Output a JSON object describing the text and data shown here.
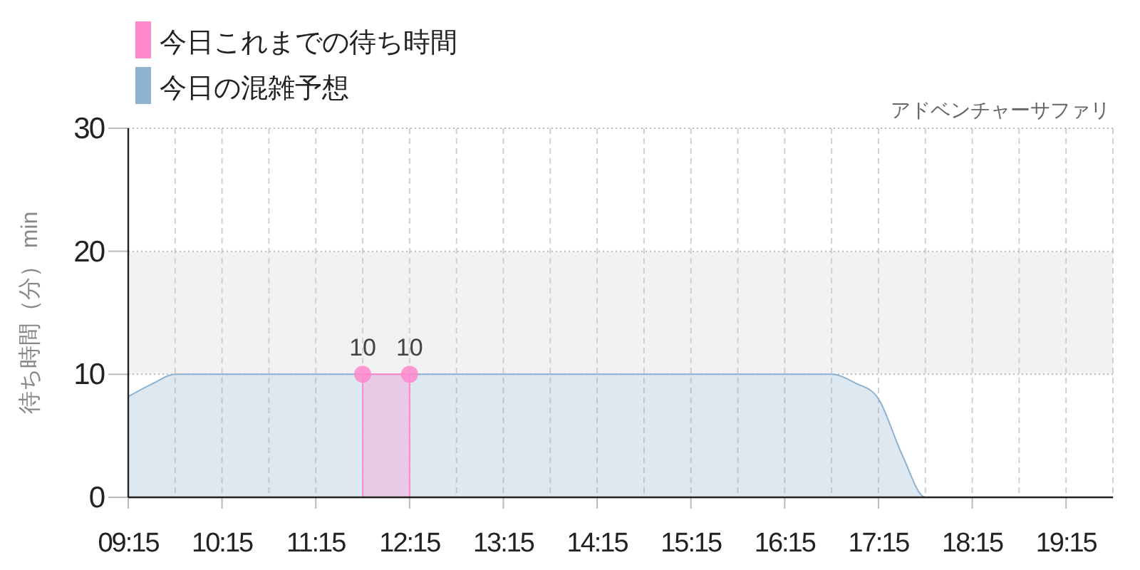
{
  "chart_data": {
    "type": "area",
    "title": "アドベンチャーサファリ",
    "ylabel": "待ち時間（分） min",
    "xlim": [
      9.25,
      19.75
    ],
    "xticks": [
      {
        "value": 9.25,
        "label": "09:15"
      },
      {
        "value": 9.75,
        "label": null
      },
      {
        "value": 10.25,
        "label": "10:15"
      },
      {
        "value": 10.75,
        "label": null
      },
      {
        "value": 11.25,
        "label": "11:15"
      },
      {
        "value": 11.75,
        "label": null
      },
      {
        "value": 12.25,
        "label": "12:15"
      },
      {
        "value": 12.75,
        "label": null
      },
      {
        "value": 13.25,
        "label": "13:15"
      },
      {
        "value": 13.75,
        "label": null
      },
      {
        "value": 14.25,
        "label": "14:15"
      },
      {
        "value": 14.75,
        "label": null
      },
      {
        "value": 15.25,
        "label": "15:15"
      },
      {
        "value": 15.75,
        "label": null
      },
      {
        "value": 16.25,
        "label": "16:15"
      },
      {
        "value": 16.75,
        "label": null
      },
      {
        "value": 17.25,
        "label": "17:15"
      },
      {
        "value": 17.75,
        "label": null
      },
      {
        "value": 18.25,
        "label": "18:15"
      },
      {
        "value": 18.75,
        "label": null
      },
      {
        "value": 19.25,
        "label": "19:15"
      },
      {
        "value": 19.75,
        "label": null
      }
    ],
    "ylim": [
      0,
      30
    ],
    "yticks": [
      0,
      10,
      20,
      30
    ],
    "grid": true,
    "legend": "top left",
    "bands": [
      {
        "axis": "y",
        "from": 10,
        "to": 20,
        "color": "#f2f2f2"
      }
    ],
    "series": [
      {
        "name": "今日これまでの待ち時間",
        "color": "#ff88cc",
        "marker": "circle",
        "x": [
          11.75,
          12.25
        ],
        "values": [
          10,
          10
        ],
        "value_labels": [
          "10",
          "10"
        ]
      },
      {
        "name": "今日の混雑予想",
        "color": "#8fb2d0",
        "x": [
          9.25,
          9.5,
          9.75,
          10.0,
          10.25,
          10.5,
          10.75,
          11.0,
          11.25,
          11.5,
          11.75,
          12.0,
          12.25,
          12.5,
          12.75,
          13.0,
          13.25,
          13.5,
          13.75,
          14.0,
          14.25,
          14.5,
          14.75,
          15.0,
          15.25,
          15.5,
          15.75,
          16.0,
          16.25,
          16.5,
          16.75,
          17.0,
          17.25,
          17.5,
          17.75,
          18.0,
          18.25,
          18.5,
          18.75,
          19.0,
          19.25,
          19.5,
          19.75
        ],
        "values": [
          8.2,
          9.2,
          10,
          10,
          10,
          10,
          10,
          10,
          10,
          10,
          10,
          10,
          10,
          10,
          10,
          10,
          10,
          10,
          10,
          10,
          10,
          10,
          10,
          10,
          10,
          10,
          10,
          10,
          10,
          10,
          10,
          9.3,
          8,
          3.5,
          0,
          0,
          0,
          0,
          0,
          0,
          0,
          0,
          0
        ]
      }
    ]
  }
}
